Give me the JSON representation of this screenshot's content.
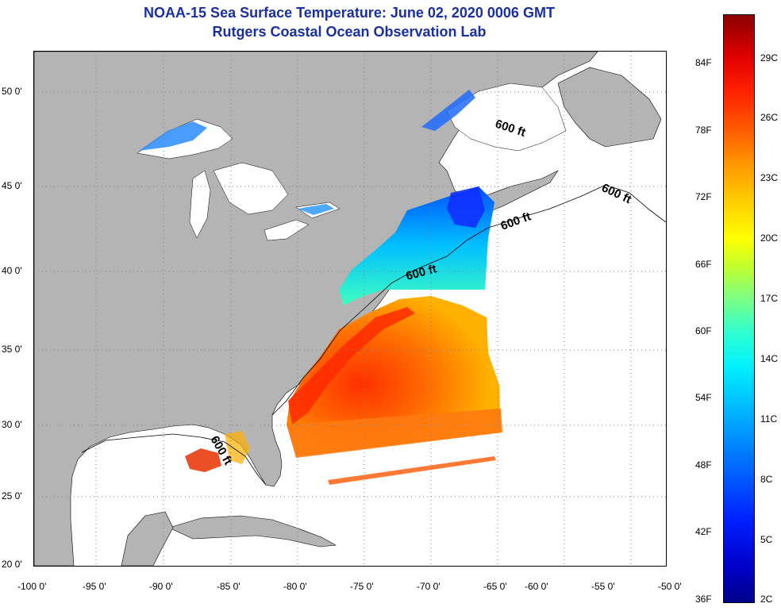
{
  "header": {
    "title": "NOAA-15 Sea Surface Temperature:  June 02, 2020 0006 GMT",
    "subtitle": "Rutgers Coastal Ocean Observation Lab"
  },
  "map": {
    "lat_labels": [
      "50 0'",
      "45 0'",
      "40 0'",
      "35 0'",
      "30 0'",
      "25 0'",
      "20 0'"
    ],
    "lon_labels": [
      "-100 0'",
      "-95 0'",
      "-90 0'",
      "-85 0'",
      "-80 0'",
      "-75 0'",
      "-70 0'",
      "-65 0'",
      "-60 0'",
      "-55 0'",
      "-50 0'"
    ],
    "contour_labels": [
      "600 ft",
      "600 ft",
      "600 ft",
      "600 ft",
      "600 ft"
    ],
    "colors": {
      "land": "#b4b4b4",
      "ocean": "#ffffff",
      "grid": "#808080"
    }
  },
  "colorbar": {
    "fahrenheit_labels": [
      "84F",
      "78F",
      "72F",
      "66F",
      "60F",
      "54F",
      "48F",
      "42F",
      "36F"
    ],
    "celsius_labels": [
      "29C",
      "26C",
      "23C",
      "20C",
      "17C",
      "14C",
      "11C",
      "8C",
      "5C",
      "2C"
    ]
  }
}
